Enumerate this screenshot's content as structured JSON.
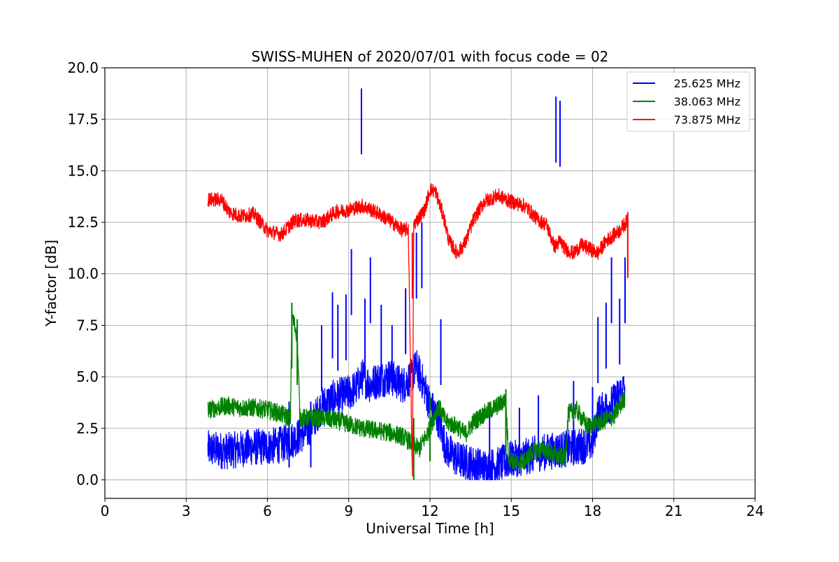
{
  "chart_data": {
    "type": "line",
    "title": "SWISS-MUHEN of 2020/07/01 with focus code = 02",
    "xlabel": "Universal Time [h]",
    "ylabel": "Y-factor [dB]",
    "xlim": [
      0,
      24
    ],
    "ylim": [
      -0.9,
      20.0
    ],
    "xticks": [
      0,
      3,
      6,
      9,
      12,
      15,
      18,
      21,
      24
    ],
    "yticks": [
      0.0,
      2.5,
      5.0,
      7.5,
      10.0,
      12.5,
      15.0,
      17.5,
      20.0
    ],
    "grid": true,
    "legend_position": "top-right",
    "series": [
      {
        "name": "25.625 MHz",
        "color": "#0000ff",
        "noise": 0.9,
        "points": [
          [
            3.8,
            1.5
          ],
          [
            4.5,
            1.4
          ],
          [
            5.0,
            1.5
          ],
          [
            5.5,
            1.6
          ],
          [
            6.0,
            1.6
          ],
          [
            6.5,
            1.7
          ],
          [
            7.0,
            2.0
          ],
          [
            7.5,
            2.4
          ],
          [
            8.0,
            3.6
          ],
          [
            8.5,
            4.0
          ],
          [
            9.0,
            4.2
          ],
          [
            9.3,
            4.5
          ],
          [
            9.5,
            5.0
          ],
          [
            9.8,
            4.6
          ],
          [
            10.0,
            4.8
          ],
          [
            10.5,
            5.0
          ],
          [
            11.0,
            4.6
          ],
          [
            11.3,
            5.0
          ],
          [
            11.5,
            5.5
          ],
          [
            11.8,
            4.5
          ],
          [
            12.0,
            3.6
          ],
          [
            12.3,
            3.0
          ],
          [
            12.6,
            1.5
          ],
          [
            13.0,
            1.0
          ],
          [
            13.5,
            0.8
          ],
          [
            14.0,
            0.6
          ],
          [
            14.5,
            0.7
          ],
          [
            15.0,
            1.0
          ],
          [
            15.5,
            1.1
          ],
          [
            16.0,
            1.3
          ],
          [
            16.5,
            1.4
          ],
          [
            17.0,
            1.5
          ],
          [
            17.5,
            1.6
          ],
          [
            18.0,
            1.8
          ],
          [
            18.2,
            3.2
          ],
          [
            18.5,
            3.5
          ],
          [
            18.8,
            3.8
          ],
          [
            19.0,
            4.2
          ],
          [
            19.2,
            4.5
          ]
        ],
        "spikes": [
          [
            6.8,
            3.8
          ],
          [
            7.6,
            3.8
          ],
          [
            8.0,
            7.5
          ],
          [
            8.4,
            9.1
          ],
          [
            8.6,
            8.5
          ],
          [
            8.9,
            9.0
          ],
          [
            9.1,
            11.2
          ],
          [
            9.47,
            19.0
          ],
          [
            9.6,
            8.8
          ],
          [
            9.8,
            10.8
          ],
          [
            10.2,
            8.5
          ],
          [
            10.6,
            7.5
          ],
          [
            11.1,
            9.3
          ],
          [
            11.5,
            12.0
          ],
          [
            11.7,
            12.5
          ],
          [
            12.4,
            7.8
          ],
          [
            14.2,
            3.4
          ],
          [
            15.3,
            3.5
          ],
          [
            16.0,
            4.1
          ],
          [
            16.65,
            18.6
          ],
          [
            16.8,
            18.4
          ],
          [
            17.3,
            4.8
          ],
          [
            18.0,
            4.5
          ],
          [
            18.2,
            7.9
          ],
          [
            18.5,
            8.6
          ],
          [
            18.7,
            10.8
          ],
          [
            19.0,
            8.8
          ],
          [
            19.2,
            10.8
          ]
        ]
      },
      {
        "name": "38.063 MHz",
        "color": "#008000",
        "noise": 0.45,
        "points": [
          [
            3.8,
            3.4
          ],
          [
            4.5,
            3.6
          ],
          [
            5.0,
            3.5
          ],
          [
            5.5,
            3.5
          ],
          [
            6.0,
            3.4
          ],
          [
            6.5,
            3.2
          ],
          [
            6.85,
            3.0
          ],
          [
            6.9,
            8.0
          ],
          [
            7.1,
            7.0
          ],
          [
            7.2,
            3.0
          ],
          [
            7.5,
            3.0
          ],
          [
            8.0,
            3.0
          ],
          [
            8.5,
            2.9
          ],
          [
            9.0,
            2.7
          ],
          [
            9.5,
            2.5
          ],
          [
            10.0,
            2.4
          ],
          [
            10.5,
            2.3
          ],
          [
            11.0,
            2.1
          ],
          [
            11.3,
            1.8
          ],
          [
            11.6,
            1.5
          ],
          [
            12.0,
            2.5
          ],
          [
            12.3,
            3.6
          ],
          [
            12.6,
            2.8
          ],
          [
            13.0,
            2.6
          ],
          [
            13.3,
            2.2
          ],
          [
            13.6,
            2.8
          ],
          [
            14.0,
            3.2
          ],
          [
            14.5,
            3.6
          ],
          [
            14.8,
            3.9
          ],
          [
            14.9,
            1.1
          ],
          [
            15.2,
            0.8
          ],
          [
            15.5,
            0.9
          ],
          [
            15.8,
            1.4
          ],
          [
            16.2,
            1.5
          ],
          [
            16.6,
            1.2
          ],
          [
            17.0,
            1.1
          ],
          [
            17.1,
            3.2
          ],
          [
            17.4,
            3.4
          ],
          [
            17.8,
            2.6
          ],
          [
            18.3,
            2.8
          ],
          [
            18.8,
            3.1
          ],
          [
            19.2,
            4.0
          ]
        ],
        "spikes": [
          [
            6.9,
            8.6
          ],
          [
            7.1,
            7.8
          ],
          [
            11.4,
            3.0
          ],
          [
            12.0,
            4.1
          ],
          [
            14.8,
            4.4
          ]
        ]
      },
      {
        "name": "73.875 MHz",
        "color": "#ff0000",
        "noise": 0.35,
        "points": [
          [
            3.8,
            13.6
          ],
          [
            4.3,
            13.6
          ],
          [
            4.6,
            13.0
          ],
          [
            5.0,
            12.8
          ],
          [
            5.5,
            12.9
          ],
          [
            6.0,
            12.1
          ],
          [
            6.5,
            11.9
          ],
          [
            7.0,
            12.6
          ],
          [
            7.5,
            12.6
          ],
          [
            8.0,
            12.5
          ],
          [
            8.5,
            13.0
          ],
          [
            9.0,
            13.1
          ],
          [
            9.5,
            13.3
          ],
          [
            10.0,
            13.0
          ],
          [
            10.5,
            12.6
          ],
          [
            11.0,
            12.1
          ],
          [
            11.2,
            12.2
          ],
          [
            11.35,
            0.0
          ],
          [
            11.4,
            12.4
          ],
          [
            11.8,
            13.1
          ],
          [
            12.0,
            14.1
          ],
          [
            12.2,
            14.0
          ],
          [
            12.5,
            12.8
          ],
          [
            12.7,
            11.6
          ],
          [
            13.0,
            11.0
          ],
          [
            13.3,
            11.5
          ],
          [
            13.6,
            12.6
          ],
          [
            14.0,
            13.5
          ],
          [
            14.5,
            13.8
          ],
          [
            15.0,
            13.5
          ],
          [
            15.5,
            13.3
          ],
          [
            16.0,
            12.6
          ],
          [
            16.3,
            12.4
          ],
          [
            16.6,
            11.3
          ],
          [
            16.8,
            11.6
          ],
          [
            17.0,
            11.2
          ],
          [
            17.3,
            11.0
          ],
          [
            17.6,
            11.4
          ],
          [
            17.9,
            11.2
          ],
          [
            18.2,
            11.0
          ],
          [
            18.5,
            11.6
          ],
          [
            19.0,
            12.1
          ],
          [
            19.3,
            12.6
          ]
        ],
        "spikes": [
          [
            19.3,
            13.0
          ],
          [
            11.35,
            12.0
          ]
        ]
      }
    ]
  }
}
